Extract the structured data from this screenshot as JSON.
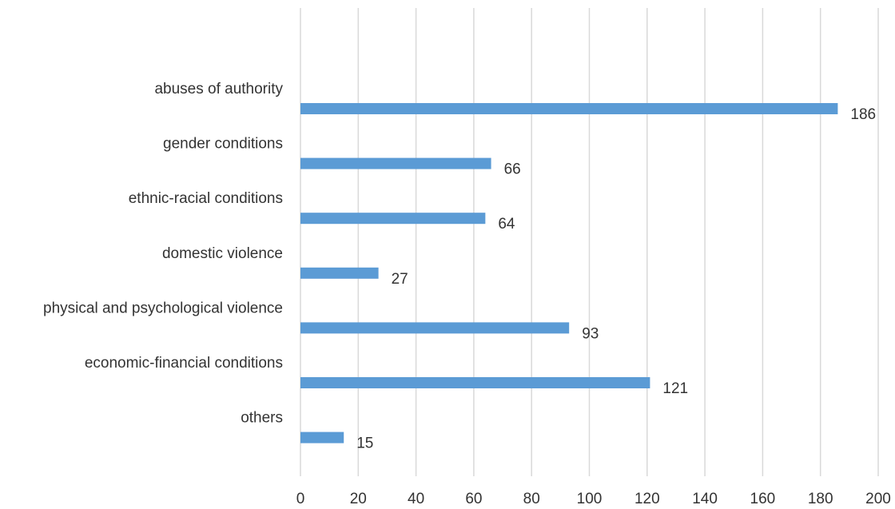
{
  "chart_data": {
    "type": "bar",
    "orientation": "horizontal",
    "title": "",
    "xlabel": "",
    "ylabel": "",
    "categories": [
      "abuses of authority",
      "gender conditions",
      "ethnic-racial conditions",
      "domestic violence",
      "physical and psychological violence",
      "economic-financial conditions",
      "others"
    ],
    "values": [
      186,
      66,
      64,
      27,
      93,
      121,
      15
    ],
    "xlim": [
      0,
      200
    ],
    "xticks": [
      0,
      20,
      40,
      60,
      80,
      100,
      120,
      140,
      160,
      180,
      200
    ],
    "grid": "vertical",
    "legend": "none",
    "data_labels": true
  },
  "colors": {
    "bar": "#5b9bd5",
    "grid": "#d9d9d9",
    "text": "#333333"
  }
}
